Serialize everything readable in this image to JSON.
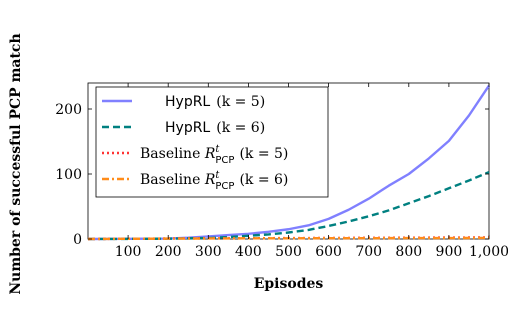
{
  "chart_data": {
    "type": "line",
    "xlabel": "Episodes",
    "ylabel": "Number of successful PCP match",
    "xlim": [
      0,
      1000
    ],
    "ylim": [
      0,
      240
    ],
    "xticks": [
      100,
      200,
      300,
      400,
      500,
      600,
      700,
      800,
      900,
      1000
    ],
    "xtick_labels": [
      "100",
      "200",
      "300",
      "400",
      "500",
      "600",
      "700",
      "800",
      "900",
      "1,000"
    ],
    "yticks": [
      0,
      100,
      200
    ],
    "ytick_labels": [
      "0",
      "100",
      "200"
    ],
    "grid": false,
    "legend_position": "top-left",
    "series": [
      {
        "name": "HypRL (k = 5)",
        "name_parts": {
          "main": "HypRL",
          "paren": "(k = 5)"
        },
        "color": "#8080ff",
        "style": "solid",
        "x": [
          0,
          100,
          200,
          250,
          300,
          350,
          400,
          450,
          500,
          550,
          600,
          650,
          700,
          750,
          800,
          850,
          900,
          950,
          1000
        ],
        "y": [
          0,
          0.3,
          0.7,
          2,
          4,
          6,
          8,
          11,
          15,
          21,
          31,
          45,
          62,
          82,
          100,
          124,
          151,
          190,
          236
        ]
      },
      {
        "name": "HypRL (k = 6)",
        "name_parts": {
          "main": "HypRL",
          "paren": "(k = 6)"
        },
        "color": "#008080",
        "style": "dashed",
        "x": [
          0,
          100,
          200,
          300,
          350,
          400,
          450,
          500,
          550,
          600,
          650,
          700,
          750,
          800,
          850,
          900,
          950,
          1000
        ],
        "y": [
          0,
          0.2,
          0.5,
          1.5,
          3,
          5,
          7,
          10,
          14,
          20,
          27,
          35,
          44,
          55,
          66,
          78,
          90,
          103
        ]
      },
      {
        "name": "Baseline R^t_PCP (k = 5)",
        "name_parts": {
          "main": "Baseline",
          "sym": "R",
          "sup": "t",
          "sub": "PCP",
          "paren": "(k = 5)"
        },
        "color": "#ff3333",
        "style": "dotted",
        "x": [
          0,
          100,
          200,
          300,
          400,
          500,
          600,
          700,
          800,
          900,
          1000
        ],
        "y": [
          0,
          0.4,
          0.8,
          1.0,
          1.2,
          1.4,
          1.6,
          1.8,
          2.0,
          2.2,
          2.4
        ]
      },
      {
        "name": "Baseline R^t_PCP (k = 6)",
        "name_parts": {
          "main": "Baseline",
          "sym": "R",
          "sup": "t",
          "sub": "PCP",
          "paren": "(k = 6)"
        },
        "color": "#ff8c1a",
        "style": "dashdot",
        "x": [
          0,
          100,
          200,
          300,
          400,
          500,
          600,
          700,
          800,
          900,
          1000
        ],
        "y": [
          0,
          0.3,
          0.6,
          0.8,
          1.0,
          1.1,
          1.2,
          1.3,
          1.4,
          1.5,
          1.6
        ]
      }
    ]
  }
}
